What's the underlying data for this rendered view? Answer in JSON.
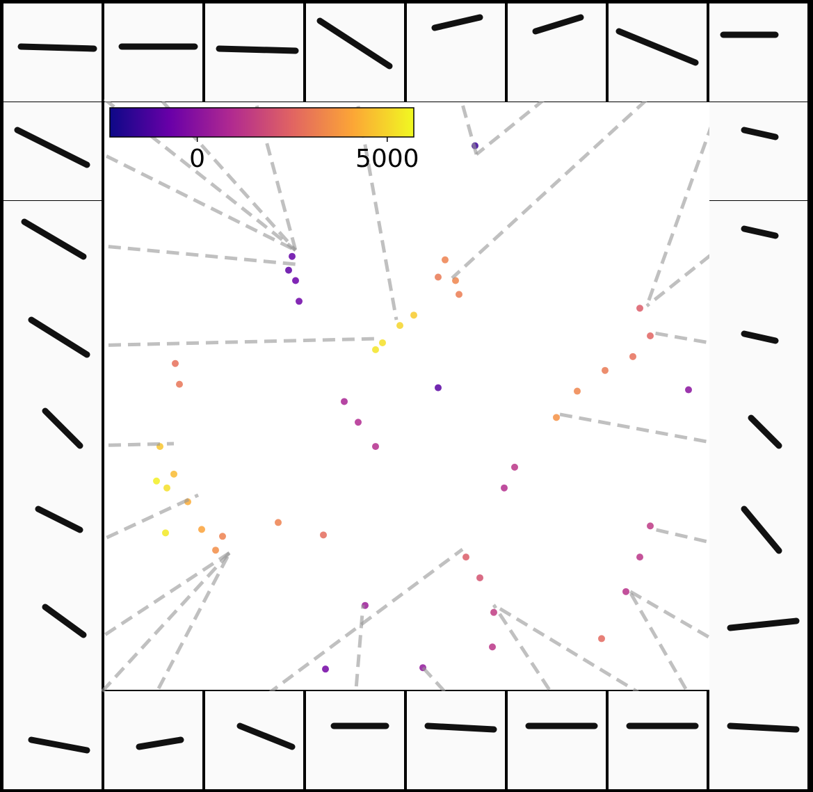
{
  "chart_data": {
    "type": "scatter",
    "xlim": [
      0,
      87
    ],
    "ylim": [
      0,
      85
    ],
    "colormap": [
      "#0d0887",
      "#6a00a8",
      "#b12a90",
      "#e16462",
      "#fca636",
      "#f0f921"
    ],
    "colorbar": {
      "lim": [
        -2300,
        5700
      ],
      "ticks": [
        0,
        5000
      ]
    },
    "points": {
      "x": [
        53.3,
        27,
        27.5,
        28,
        26.5,
        49,
        50.5,
        51,
        48,
        40,
        42.5,
        44.5,
        39,
        10.2,
        10.8,
        8,
        10,
        12,
        9,
        14,
        16,
        17,
        7.5,
        8.8,
        34.5,
        36.5,
        39,
        77,
        78.5,
        76,
        72,
        68,
        65,
        59,
        57.5,
        78.5,
        77,
        75,
        52,
        54,
        56,
        55.8,
        37.5,
        48,
        84,
        31.5,
        25,
        71.5,
        45.8,
        31.8
      ],
      "y": [
        78.7,
        62.7,
        59.2,
        56.2,
        60.7,
        62.2,
        59.2,
        57.2,
        59.7,
        50.2,
        52.7,
        54.2,
        49.2,
        47.2,
        44.2,
        35.2,
        31.2,
        27.2,
        29.2,
        23.2,
        20.2,
        22.2,
        30.2,
        22.7,
        41.7,
        38.7,
        35.2,
        55.2,
        51.2,
        48.2,
        46.2,
        43.2,
        39.4,
        32.2,
        29.2,
        23.7,
        19.2,
        14.2,
        19.2,
        16.2,
        11.2,
        6.2,
        12.2,
        43.7,
        43.4,
        22.4,
        24.2,
        7.4,
        3.2,
        3
      ],
      "c": [
        -1500,
        -800,
        -700,
        -600,
        -900,
        3200,
        3300,
        3100,
        3000,
        5200,
        5000,
        4800,
        5300,
        2800,
        2900,
        4700,
        4500,
        4200,
        5200,
        4000,
        3500,
        3200,
        5500,
        5400,
        700,
        900,
        1000,
        2300,
        2500,
        2800,
        3000,
        3300,
        3600,
        1200,
        1000,
        1300,
        1200,
        1100,
        2300,
        2000,
        1400,
        1200,
        400,
        -1000,
        0,
        2700,
        3200,
        2600,
        200,
        -500
      ]
    }
  }
}
